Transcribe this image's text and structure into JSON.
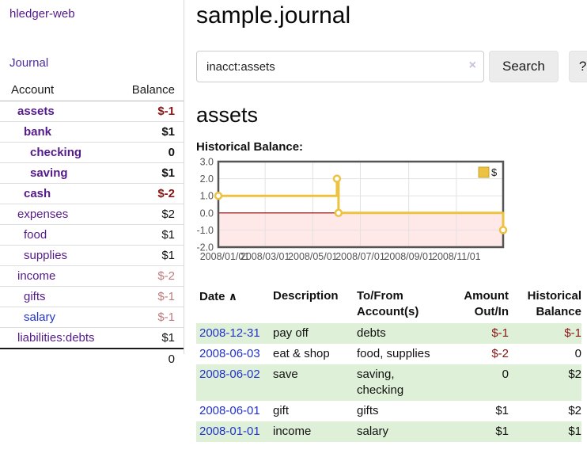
{
  "app": {
    "brand": "hledger-web",
    "nav_journal": "Journal"
  },
  "colors": {
    "purple_link": "#551a8b",
    "blue_link": "#2233cc",
    "negative_strong": "#8b1414",
    "negative_soft": "#bf7b7b",
    "row_shade_green": "#dff0d8",
    "series_gold": "#edc240"
  },
  "sidebar": {
    "accounts_header": {
      "account": "Account",
      "balance": "Balance"
    },
    "accounts": [
      {
        "name": "assets",
        "depth": 1,
        "bold": true,
        "balance": "$-1",
        "balance_tone": "negstrong"
      },
      {
        "name": "bank",
        "depth": 2,
        "bold": true,
        "balance": "$1",
        "balance_tone": "plain"
      },
      {
        "name": "checking",
        "depth": 3,
        "bold": true,
        "balance": "0",
        "balance_tone": "plain"
      },
      {
        "name": "saving",
        "depth": 3,
        "bold": true,
        "balance": "$1",
        "balance_tone": "plain"
      },
      {
        "name": "cash",
        "depth": 2,
        "bold": true,
        "balance": "$-2",
        "balance_tone": "negstrong"
      },
      {
        "name": "expenses",
        "depth": 1,
        "bold": false,
        "balance": "$2",
        "balance_tone": "plain"
      },
      {
        "name": "food",
        "depth": 2,
        "bold": false,
        "balance": "$1",
        "balance_tone": "plain"
      },
      {
        "name": "supplies",
        "depth": 2,
        "bold": false,
        "balance": "$1",
        "balance_tone": "plain"
      },
      {
        "name": "income",
        "depth": 1,
        "bold": false,
        "balance": "$-2",
        "balance_tone": "negsoft"
      },
      {
        "name": "gifts",
        "depth": 2,
        "bold": false,
        "balance": "$-1",
        "balance_tone": "negsoft"
      },
      {
        "name": "salary",
        "depth": 2,
        "bold": false,
        "link_tone": "blue",
        "balance": "$-1",
        "balance_tone": "negsoft"
      },
      {
        "name": "liabilities:debts",
        "depth": 1,
        "bold": false,
        "balance": "$1",
        "balance_tone": "plain"
      }
    ],
    "total": "0"
  },
  "header": {
    "title": "sample.journal"
  },
  "search": {
    "value": "inacct:assets",
    "clear_icon": "×",
    "button": "Search",
    "help_button": "?"
  },
  "account_page": {
    "heading": "assets",
    "chart_label": "Historical Balance:"
  },
  "chart_data": {
    "type": "line",
    "title": "Historical Balance",
    "step": true,
    "xlim": [
      "2008-01-01",
      "2008-12-31"
    ],
    "ylim": [
      -2,
      3
    ],
    "y_ticks": [
      3.0,
      2.0,
      1.0,
      0.0,
      -1.0,
      -2.0
    ],
    "x_ticks": [
      {
        "date": "2008-01-01",
        "label": "2008/01/01"
      },
      {
        "date": "2008-03-01",
        "label": "2008/03/01"
      },
      {
        "date": "2008-05-01",
        "label": "2008/05/01"
      },
      {
        "date": "2008-07-01",
        "label": "2008/07/01"
      },
      {
        "date": "2008-09-01",
        "label": "2008/09/01"
      },
      {
        "date": "2008-11-01",
        "label": "2008/11/01"
      }
    ],
    "series": [
      {
        "name": "$",
        "color": "#edc240",
        "points": [
          [
            "2008-01-01",
            1.0
          ],
          [
            "2008-06-01",
            2.0
          ],
          [
            "2008-06-03",
            0.0
          ],
          [
            "2008-12-31",
            -1.0
          ]
        ]
      }
    ],
    "negative_region_color": "rgba(255,0,0,0.09)",
    "zero_line_color": "#8b0000",
    "grid_color": "#e2e2e2",
    "border_color": "#545454",
    "legend": {
      "label": "$",
      "position": "top-right"
    }
  },
  "register": {
    "columns": {
      "date": "Date",
      "sort_indicator": "∧",
      "description": "Description",
      "tofrom": "To/From Account(s)",
      "amount": "Amount Out/In",
      "historical": "Historical Balance"
    },
    "rows": [
      {
        "date": "2008-12-31",
        "description": "pay off",
        "accounts": "debts",
        "amount": "$-1",
        "amount_neg": true,
        "historical": "$-1",
        "historical_neg": true,
        "shaded": true
      },
      {
        "date": "2008-06-03",
        "description": "eat & shop",
        "accounts": "food, supplies",
        "amount": "$-2",
        "amount_neg": true,
        "historical": "0",
        "historical_neg": false,
        "shaded": false
      },
      {
        "date": "2008-06-02",
        "description": "save",
        "accounts": "saving,\nchecking",
        "amount": "0",
        "amount_neg": false,
        "historical": "$2",
        "historical_neg": false,
        "shaded": true
      },
      {
        "date": "2008-06-01",
        "description": "gift",
        "accounts": "gifts",
        "amount": "$1",
        "amount_neg": false,
        "historical": "$2",
        "historical_neg": false,
        "shaded": false
      },
      {
        "date": "2008-01-01",
        "description": "income",
        "accounts": "salary",
        "amount": "$1",
        "amount_neg": false,
        "historical": "$1",
        "historical_neg": false,
        "shaded": true
      }
    ]
  }
}
